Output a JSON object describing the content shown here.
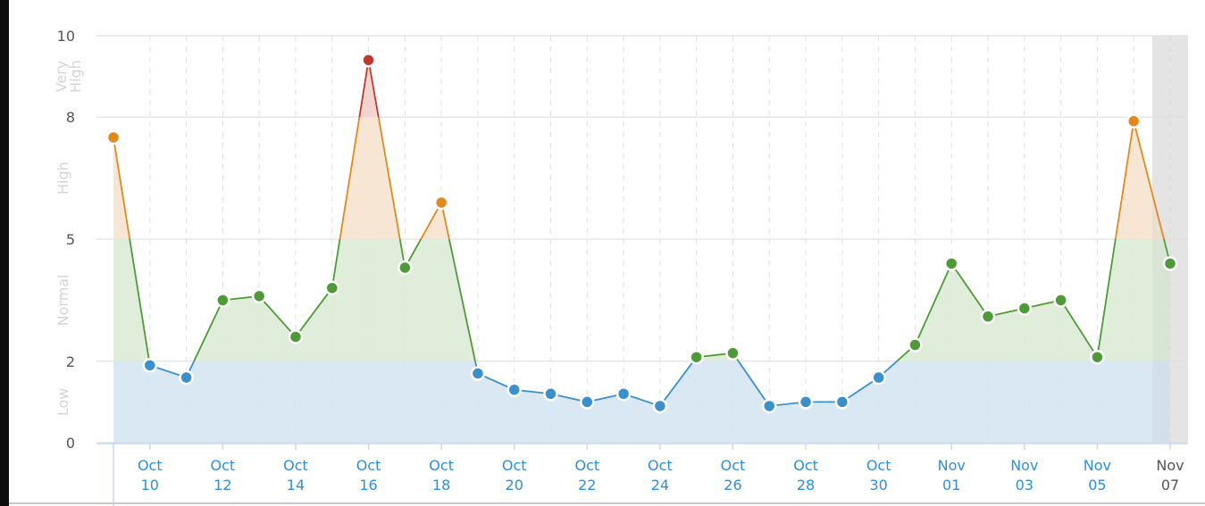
{
  "chart_data": {
    "type": "area",
    "title": "",
    "xlabel": "",
    "ylabel": "",
    "ylim": [
      0,
      10
    ],
    "yticks": [
      0,
      2,
      5,
      8,
      10
    ],
    "grid": true,
    "bands": [
      {
        "name": "Low",
        "from": 0,
        "to": 2,
        "color": "#3b8fcb",
        "fill": "#d6e6f2"
      },
      {
        "name": "Normal",
        "from": 2,
        "to": 5,
        "color": "#4f9a38",
        "fill": "#ddebd7"
      },
      {
        "name": "High",
        "from": 5,
        "to": 8,
        "color": "#e08a1e",
        "fill": "#f7e3cf"
      },
      {
        "name": "Very High",
        "from": 8,
        "to": 10,
        "color": "#c0392b",
        "fill": "#f0cfca"
      }
    ],
    "x": [
      "Oct 09",
      "Oct 10",
      "Oct 11",
      "Oct 12",
      "Oct 13",
      "Oct 14",
      "Oct 15",
      "Oct 16",
      "Oct 17",
      "Oct 18",
      "Oct 19",
      "Oct 20",
      "Oct 21",
      "Oct 22",
      "Oct 23",
      "Oct 24",
      "Oct 25",
      "Oct 26",
      "Oct 27",
      "Oct 28",
      "Oct 29",
      "Oct 30",
      "Oct 31",
      "Nov 01",
      "Nov 02",
      "Nov 03",
      "Nov 04",
      "Nov 05",
      "Nov 06",
      "Nov 07"
    ],
    "values": [
      7.5,
      1.9,
      1.6,
      3.5,
      3.6,
      2.6,
      3.8,
      9.4,
      4.3,
      5.9,
      1.7,
      1.3,
      1.2,
      1.0,
      1.2,
      0.9,
      2.1,
      2.2,
      0.9,
      1.0,
      1.0,
      1.6,
      2.4,
      4.4,
      3.1,
      3.3,
      3.5,
      2.1,
      7.9,
      4.4
    ],
    "xtick_labels": [
      {
        "month": "Oct",
        "day": "10",
        "index": 1
      },
      {
        "month": "Oct",
        "day": "12",
        "index": 3
      },
      {
        "month": "Oct",
        "day": "14",
        "index": 5
      },
      {
        "month": "Oct",
        "day": "16",
        "index": 7
      },
      {
        "month": "Oct",
        "day": "18",
        "index": 9
      },
      {
        "month": "Oct",
        "day": "20",
        "index": 11
      },
      {
        "month": "Oct",
        "day": "22",
        "index": 13
      },
      {
        "month": "Oct",
        "day": "24",
        "index": 15
      },
      {
        "month": "Oct",
        "day": "26",
        "index": 17
      },
      {
        "month": "Oct",
        "day": "28",
        "index": 19
      },
      {
        "month": "Oct",
        "day": "30",
        "index": 21
      },
      {
        "month": "Nov",
        "day": "01",
        "index": 23
      },
      {
        "month": "Nov",
        "day": "03",
        "index": 25
      },
      {
        "month": "Nov",
        "day": "05",
        "index": 27
      },
      {
        "month": "Nov",
        "day": "07",
        "index": 29
      }
    ],
    "highlight_current": "Nov 07",
    "tick_color": "#2d8fdc",
    "current_tick_color": "#555555"
  }
}
